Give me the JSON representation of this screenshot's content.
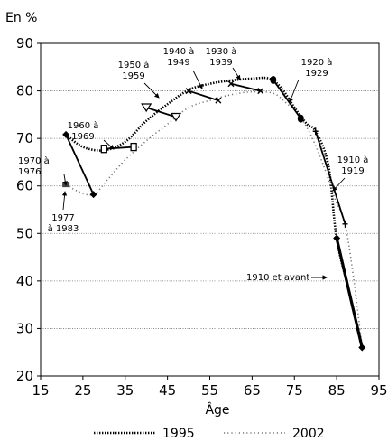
{
  "chart_data": {
    "type": "line",
    "y_unit_label": "En %",
    "xlabel": "Âge",
    "xlim": [
      15,
      95
    ],
    "ylim": [
      20,
      90
    ],
    "x_ticks": [
      15,
      25,
      35,
      45,
      55,
      65,
      75,
      85,
      95
    ],
    "y_ticks": [
      20,
      30,
      40,
      50,
      60,
      70,
      80,
      90
    ],
    "gridlines_y": [
      30,
      40,
      50,
      60,
      70,
      80
    ],
    "series": [
      {
        "name": "1995",
        "style": "dotted-thick",
        "points": [
          [
            21,
            70.8
          ],
          [
            25,
            68.2
          ],
          [
            30,
            67.5
          ],
          [
            35,
            69.3
          ],
          [
            40,
            73.7
          ],
          [
            45,
            77.2
          ],
          [
            50,
            80.2
          ],
          [
            55,
            81.5
          ],
          [
            60,
            82.2
          ],
          [
            65,
            82.6
          ],
          [
            69,
            82.6
          ],
          [
            72,
            80.5
          ],
          [
            75,
            76.5
          ],
          [
            78,
            73
          ],
          [
            80,
            71.5
          ],
          [
            83,
            64.5
          ],
          [
            85,
            49
          ],
          [
            88,
            37.5
          ],
          [
            91,
            26
          ]
        ]
      },
      {
        "name": "2002",
        "style": "dotted-thin",
        "points": [
          [
            21,
            60.3
          ],
          [
            24,
            58.8
          ],
          [
            27.5,
            58.2
          ],
          [
            31,
            61.5
          ],
          [
            35,
            65.5
          ],
          [
            40,
            69.5
          ],
          [
            45,
            73
          ],
          [
            50,
            76.5
          ],
          [
            55,
            78
          ],
          [
            60,
            79.2
          ],
          [
            65,
            79.8
          ],
          [
            70,
            79.5
          ],
          [
            73,
            77.5
          ],
          [
            76,
            75
          ],
          [
            79,
            70.5
          ],
          [
            82,
            64
          ],
          [
            84.5,
            57.5
          ],
          [
            87,
            51.8
          ],
          [
            89,
            40.5
          ],
          [
            91,
            26
          ]
        ]
      }
    ],
    "cohorts": [
      {
        "label": "1970 à 1976",
        "p1995": [
          21,
          70.8
        ],
        "p2002": [
          27.5,
          58.2
        ],
        "marker": "diamond"
      },
      {
        "label": "1960 à 1969",
        "p1995": [
          30,
          67.8
        ],
        "p2002": [
          37,
          68.2
        ],
        "marker": "square-open"
      },
      {
        "label": "1950 à 1959",
        "p1995": [
          40,
          76.5
        ],
        "p2002": [
          47,
          74.5
        ],
        "marker": "triangle-open"
      },
      {
        "label": "1940 à 1949",
        "p1995": [
          50,
          80
        ],
        "p2002": [
          57,
          78
        ],
        "marker": "x"
      },
      {
        "label": "1930 à 1939",
        "p1995": [
          60,
          81.5
        ],
        "p2002": [
          67,
          80
        ],
        "marker": "x"
      },
      {
        "label": "1920 à 1929",
        "p1995": [
          70,
          82.3
        ],
        "p2002": [
          76.5,
          74.2
        ],
        "marker": "oval"
      },
      {
        "label": "1910 à 1919",
        "p1995": [
          80,
          71.5
        ],
        "p2002": [
          87,
          52
        ],
        "marker": "plus"
      },
      {
        "label": "1910 et avant",
        "p1995": [
          85,
          49
        ],
        "p2002": [
          91,
          26
        ],
        "marker": "diamond"
      }
    ],
    "single_points": [
      {
        "label": "1977 à 1983",
        "p2002": [
          21,
          60.3
        ],
        "marker": "square"
      }
    ],
    "annotations": [
      {
        "text": [
          "1970 à",
          "1976"
        ]
      },
      {
        "text": [
          "1977",
          "à 1983"
        ]
      },
      {
        "text": [
          "1960 à",
          "1969"
        ]
      },
      {
        "text": [
          "1950 à",
          "1959"
        ]
      },
      {
        "text": [
          "1940 à",
          "1949"
        ]
      },
      {
        "text": [
          "1930 à",
          "1939"
        ]
      },
      {
        "text": [
          "1920 à",
          "1929"
        ]
      },
      {
        "text": [
          "1910 à",
          "1919"
        ]
      },
      {
        "text": [
          "1910 et avant"
        ]
      }
    ],
    "legend": {
      "position": "bottom",
      "entries": [
        {
          "label": "1995",
          "style": "dotted-thick"
        },
        {
          "label": "2002",
          "style": "dotted-thin"
        }
      ]
    }
  }
}
